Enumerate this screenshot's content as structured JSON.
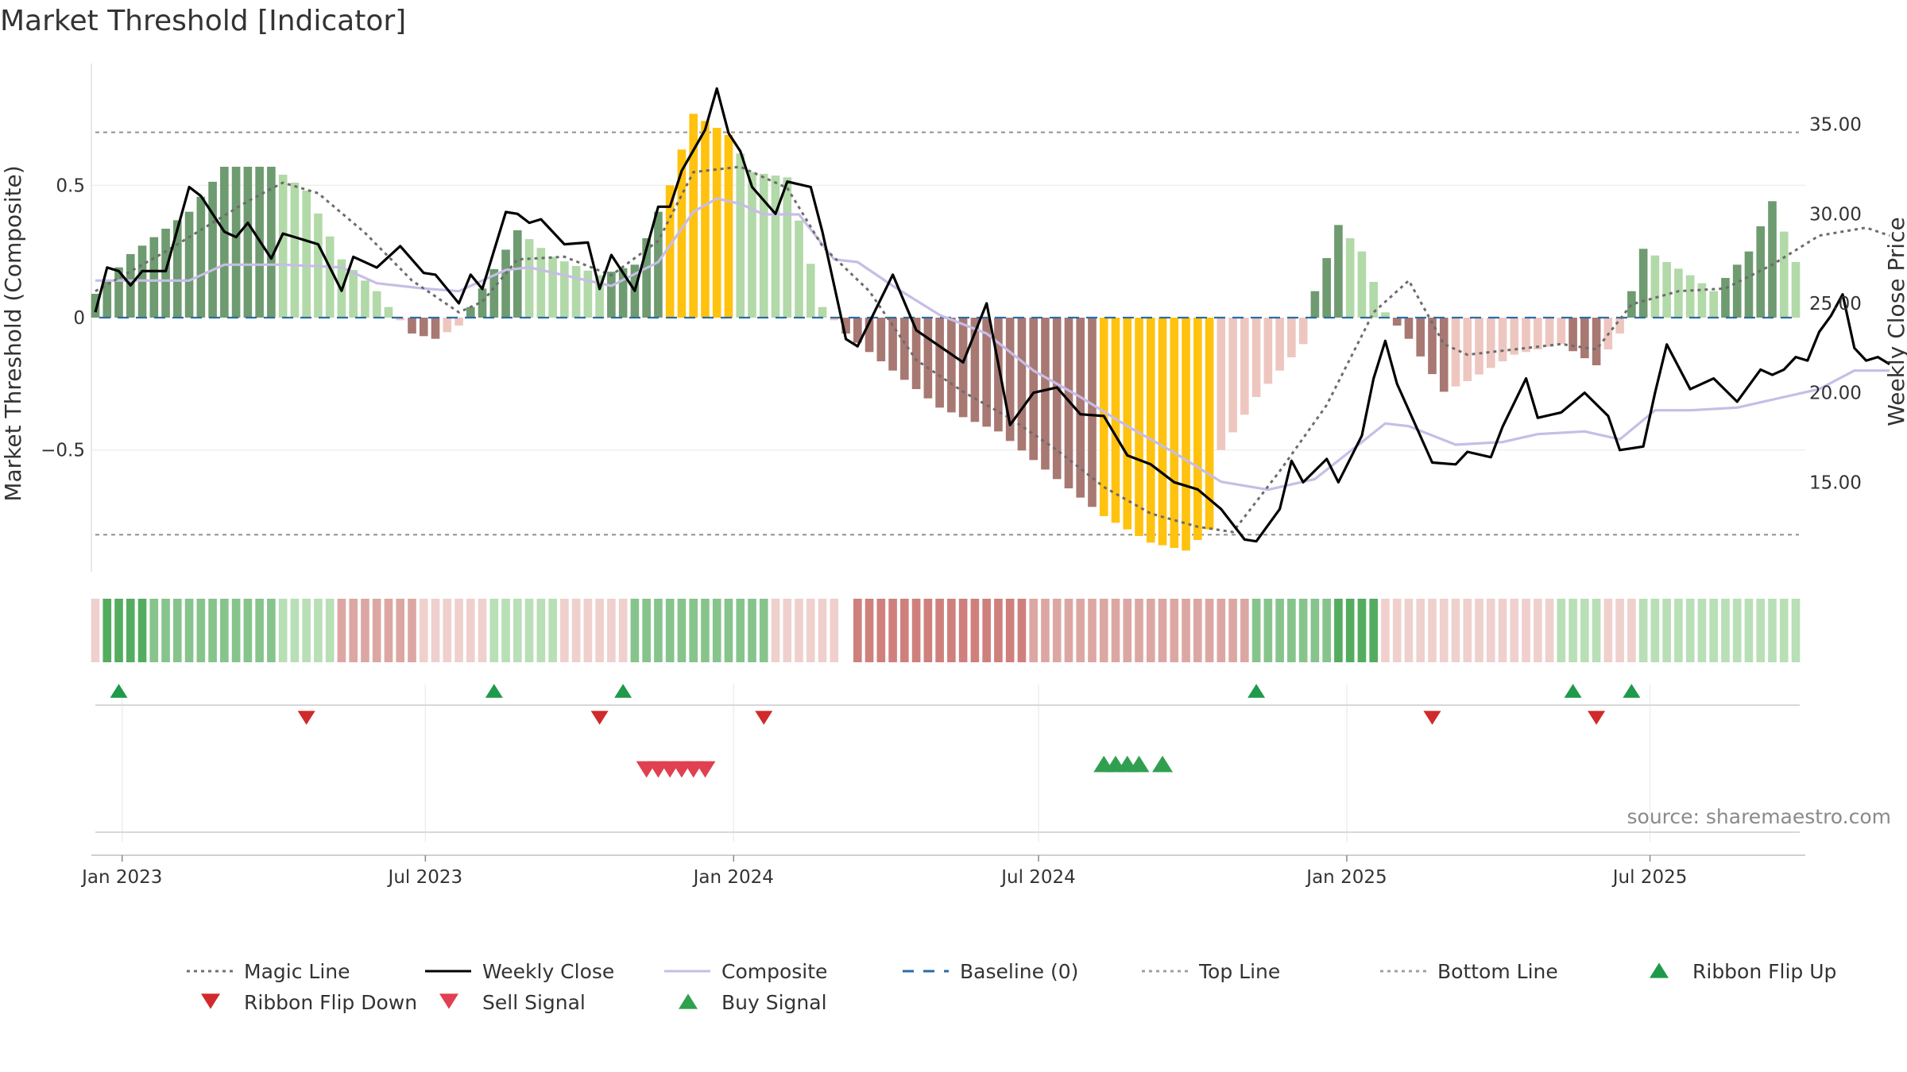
{
  "chart_data": {
    "type": "bar",
    "title": "Market Threshold [Indicator]",
    "ylabel_left": "Market Threshold (Composite)",
    "ylabel_right": "Weekly Close Price",
    "source": "source: sharemaestro.com",
    "left_ticks": [
      0.5,
      0,
      -0.5
    ],
    "left_tick_labels": [
      "0.5",
      "0",
      "−0.5"
    ],
    "right_ticks": [
      35,
      30,
      25,
      20,
      15
    ],
    "right_tick_labels": [
      "35.00",
      "30.00",
      "25.00",
      "20.00",
      "15.00"
    ],
    "ylim_left": [
      -0.96,
      0.96
    ],
    "ylim_right": [
      10.0,
      38.4
    ],
    "top_line": 0.7,
    "bottom_line": -0.82,
    "x_start": "2022-12-16",
    "x_end": "2025-09-26",
    "x_tick_labels": [
      "Jan 2023",
      "Jul 2023",
      "Jan 2024",
      "Jul 2024",
      "Jan 2025",
      "Jul 2025"
    ],
    "x_tick_dates": [
      "2023-01-01",
      "2023-07-01",
      "2024-01-01",
      "2024-07-01",
      "2025-01-01",
      "2025-07-01"
    ],
    "histogram_keypoints": [
      [
        "2022-12-16",
        0.09
      ],
      [
        "2023-01-06",
        0.24
      ],
      [
        "2023-02-10",
        0.4
      ],
      [
        "2023-03-03",
        0.57
      ],
      [
        "2023-03-31",
        0.57
      ],
      [
        "2023-04-21",
        0.48
      ],
      [
        "2023-05-12",
        0.22
      ],
      [
        "2023-06-02",
        0.1
      ],
      [
        "2023-06-09",
        0.04
      ],
      [
        "2023-06-23",
        -0.06
      ],
      [
        "2023-07-07",
        -0.08
      ],
      [
        "2023-07-21",
        -0.03
      ],
      [
        "2023-08-04",
        0.11
      ],
      [
        "2023-08-25",
        0.33
      ],
      [
        "2023-09-15",
        0.23
      ],
      [
        "2023-10-13",
        0.16
      ],
      [
        "2023-11-03",
        0.2
      ],
      [
        "2023-11-24",
        0.5
      ],
      [
        "2023-12-08",
        0.77
      ],
      [
        "2023-12-29",
        0.69
      ],
      [
        "2024-01-12",
        0.55
      ],
      [
        "2024-02-02",
        0.53
      ],
      [
        "2024-02-23",
        0.04
      ],
      [
        "2024-03-08",
        -0.06
      ],
      [
        "2024-04-05",
        -0.2
      ],
      [
        "2024-05-03",
        -0.34
      ],
      [
        "2024-06-07",
        -0.43
      ],
      [
        "2024-07-12",
        -0.61
      ],
      [
        "2024-08-09",
        -0.75
      ],
      [
        "2024-09-06",
        -0.85
      ],
      [
        "2024-09-27",
        -0.88
      ],
      [
        "2024-10-11",
        -0.8
      ],
      [
        "2024-10-18",
        -0.5
      ],
      [
        "2024-11-08",
        -0.3
      ],
      [
        "2024-12-06",
        -0.1
      ],
      [
        "2024-12-13",
        0.1
      ],
      [
        "2024-12-27",
        0.35
      ],
      [
        "2025-01-10",
        0.25
      ],
      [
        "2025-01-24",
        0.02
      ],
      [
        "2025-02-07",
        -0.08
      ],
      [
        "2025-02-28",
        -0.28
      ],
      [
        "2025-03-14",
        -0.24
      ],
      [
        "2025-04-11",
        -0.14
      ],
      [
        "2025-05-09",
        -0.1
      ],
      [
        "2025-05-30",
        -0.18
      ],
      [
        "2025-06-13",
        -0.06
      ],
      [
        "2025-06-27",
        0.26
      ],
      [
        "2025-07-25",
        0.16
      ],
      [
        "2025-08-08",
        0.1
      ],
      [
        "2025-08-29",
        0.25
      ],
      [
        "2025-09-12",
        0.44
      ],
      [
        "2025-09-26",
        0.21
      ]
    ],
    "bar_colors": {
      "pos_strong": "#6e9b70",
      "pos_weak": "#b2d9a8",
      "neg_strong": "#a87873",
      "neg_weak": "#eec6c0",
      "extreme": "#ffc20e"
    },
    "extreme_windows": [
      [
        "2023-11-24",
        "2023-12-29"
      ],
      [
        "2024-08-09",
        "2024-10-11"
      ]
    ],
    "weekly_close_keypoints": [
      [
        "2022-12-16",
        24.5
      ],
      [
        "2022-12-23",
        27.0
      ],
      [
        "2022-12-30",
        26.8
      ],
      [
        "2023-01-06",
        26.0
      ],
      [
        "2023-01-13",
        26.8
      ],
      [
        "2023-01-27",
        26.8
      ],
      [
        "2023-02-10",
        31.5
      ],
      [
        "2023-02-17",
        31.0
      ],
      [
        "2023-03-03",
        29.0
      ],
      [
        "2023-03-10",
        28.7
      ],
      [
        "2023-03-17",
        29.5
      ],
      [
        "2023-03-31",
        27.5
      ],
      [
        "2023-04-07",
        28.9
      ],
      [
        "2023-04-28",
        28.3
      ],
      [
        "2023-05-12",
        25.7
      ],
      [
        "2023-05-19",
        27.6
      ],
      [
        "2023-06-02",
        27.0
      ],
      [
        "2023-06-16",
        28.2
      ],
      [
        "2023-06-30",
        26.7
      ],
      [
        "2023-07-07",
        26.6
      ],
      [
        "2023-07-21",
        25.0
      ],
      [
        "2023-07-28",
        26.6
      ],
      [
        "2023-08-04",
        25.8
      ],
      [
        "2023-08-18",
        30.1
      ],
      [
        "2023-08-25",
        30.0
      ],
      [
        "2023-09-01",
        29.5
      ],
      [
        "2023-09-08",
        29.7
      ],
      [
        "2023-09-22",
        28.3
      ],
      [
        "2023-10-06",
        28.4
      ],
      [
        "2023-10-13",
        25.8
      ],
      [
        "2023-10-20",
        27.7
      ],
      [
        "2023-11-03",
        25.7
      ],
      [
        "2023-11-17",
        30.4
      ],
      [
        "2023-11-24",
        30.4
      ],
      [
        "2023-12-01",
        32.4
      ],
      [
        "2023-12-15",
        34.7
      ],
      [
        "2023-12-22",
        37.0
      ],
      [
        "2023-12-29",
        34.5
      ],
      [
        "2024-01-05",
        33.5
      ],
      [
        "2024-01-12",
        31.5
      ],
      [
        "2024-01-26",
        30.0
      ],
      [
        "2024-02-02",
        31.8
      ],
      [
        "2024-02-16",
        31.5
      ],
      [
        "2024-02-23",
        29.0
      ],
      [
        "2024-03-08",
        23.0
      ],
      [
        "2024-03-15",
        22.6
      ],
      [
        "2024-04-05",
        26.6
      ],
      [
        "2024-04-19",
        23.5
      ],
      [
        "2024-05-03",
        22.6
      ],
      [
        "2024-05-17",
        21.7
      ],
      [
        "2024-05-31",
        25.0
      ],
      [
        "2024-06-14",
        18.2
      ],
      [
        "2024-06-28",
        20.0
      ],
      [
        "2024-07-12",
        20.3
      ],
      [
        "2024-07-26",
        18.8
      ],
      [
        "2024-08-09",
        18.7
      ],
      [
        "2024-08-23",
        16.5
      ],
      [
        "2024-09-06",
        16.0
      ],
      [
        "2024-09-20",
        15.0
      ],
      [
        "2024-10-04",
        14.6
      ],
      [
        "2024-10-18",
        13.5
      ],
      [
        "2024-11-01",
        11.8
      ],
      [
        "2024-11-08",
        11.7
      ],
      [
        "2024-11-22",
        13.5
      ],
      [
        "2024-11-29",
        16.2
      ],
      [
        "2024-12-06",
        15.0
      ],
      [
        "2024-12-20",
        16.3
      ],
      [
        "2024-12-27",
        15.0
      ],
      [
        "2025-01-10",
        17.6
      ],
      [
        "2025-01-17",
        20.8
      ],
      [
        "2025-01-24",
        22.9
      ],
      [
        "2025-01-31",
        20.5
      ],
      [
        "2025-02-21",
        16.1
      ],
      [
        "2025-03-07",
        16.0
      ],
      [
        "2025-03-14",
        16.7
      ],
      [
        "2025-03-28",
        16.4
      ],
      [
        "2025-04-04",
        18.1
      ],
      [
        "2025-04-18",
        20.8
      ],
      [
        "2025-04-25",
        18.6
      ],
      [
        "2025-05-09",
        18.9
      ],
      [
        "2025-05-23",
        20.0
      ],
      [
        "2025-06-06",
        18.7
      ],
      [
        "2025-06-13",
        16.8
      ],
      [
        "2025-06-27",
        17.0
      ],
      [
        "2025-07-04",
        20.0
      ],
      [
        "2025-07-11",
        22.7
      ],
      [
        "2025-07-25",
        20.2
      ],
      [
        "2025-08-08",
        20.8
      ],
      [
        "2025-08-22",
        19.5
      ],
      [
        "2025-09-05",
        21.3
      ],
      [
        "2025-09-12",
        21.0
      ],
      [
        "2025-09-19",
        21.3
      ],
      [
        "2025-09-26",
        22.0
      ],
      [
        "2025-10-03",
        21.8
      ],
      [
        "2025-10-10",
        23.4
      ],
      [
        "2025-10-17",
        24.3
      ],
      [
        "2025-10-24",
        25.5
      ],
      [
        "2025-10-31",
        22.5
      ],
      [
        "2025-11-07",
        21.8
      ],
      [
        "2025-11-14",
        22.0
      ],
      [
        "2025-11-21",
        21.6
      ]
    ],
    "magic_line_keypoints": [
      [
        "2022-12-16",
        0.1
      ],
      [
        "2023-01-27",
        0.25
      ],
      [
        "2023-03-17",
        0.44
      ],
      [
        "2023-04-07",
        0.51
      ],
      [
        "2023-04-28",
        0.47
      ],
      [
        "2023-05-26",
        0.32
      ],
      [
        "2023-06-23",
        0.14
      ],
      [
        "2023-07-21",
        0.02
      ],
      [
        "2023-08-04",
        0.06
      ],
      [
        "2023-08-25",
        0.22
      ],
      [
        "2023-09-22",
        0.23
      ],
      [
        "2023-10-20",
        0.16
      ],
      [
        "2023-11-17",
        0.29
      ],
      [
        "2023-12-08",
        0.55
      ],
      [
        "2024-01-05",
        0.57
      ],
      [
        "2024-02-02",
        0.49
      ],
      [
        "2024-02-23",
        0.27
      ],
      [
        "2024-03-22",
        0.1
      ],
      [
        "2024-04-19",
        -0.16
      ],
      [
        "2024-05-17",
        -0.28
      ],
      [
        "2024-06-14",
        -0.38
      ],
      [
        "2024-07-12",
        -0.5
      ],
      [
        "2024-08-09",
        -0.64
      ],
      [
        "2024-09-06",
        -0.74
      ],
      [
        "2024-10-04",
        -0.79
      ],
      [
        "2024-10-25",
        -0.81
      ],
      [
        "2024-11-22",
        -0.58
      ],
      [
        "2024-12-20",
        -0.33
      ],
      [
        "2025-01-17",
        0.02
      ],
      [
        "2025-02-07",
        0.14
      ],
      [
        "2025-02-28",
        -0.1
      ],
      [
        "2025-03-14",
        -0.14
      ],
      [
        "2025-04-11",
        -0.12
      ],
      [
        "2025-05-09",
        -0.1
      ],
      [
        "2025-05-30",
        -0.12
      ],
      [
        "2025-06-20",
        0.05
      ],
      [
        "2025-07-18",
        0.1
      ],
      [
        "2025-08-15",
        0.11
      ],
      [
        "2025-09-12",
        0.2
      ],
      [
        "2025-10-10",
        0.31
      ],
      [
        "2025-11-07",
        0.34
      ],
      [
        "2025-11-21",
        0.31
      ]
    ],
    "composite_keypoints": [
      [
        "2022-12-16",
        0.14
      ],
      [
        "2023-02-10",
        0.14
      ],
      [
        "2023-03-03",
        0.2
      ],
      [
        "2023-04-07",
        0.2
      ],
      [
        "2023-05-12",
        0.19
      ],
      [
        "2023-06-02",
        0.13
      ],
      [
        "2023-06-30",
        0.11
      ],
      [
        "2023-07-21",
        0.1
      ],
      [
        "2023-08-18",
        0.18
      ],
      [
        "2023-09-01",
        0.19
      ],
      [
        "2023-09-22",
        0.16
      ],
      [
        "2023-10-20",
        0.12
      ],
      [
        "2023-11-17",
        0.21
      ],
      [
        "2023-12-08",
        0.4
      ],
      [
        "2023-12-22",
        0.45
      ],
      [
        "2024-01-05",
        0.43
      ],
      [
        "2024-01-19",
        0.39
      ],
      [
        "2024-02-09",
        0.39
      ],
      [
        "2024-03-01",
        0.22
      ],
      [
        "2024-03-15",
        0.21
      ],
      [
        "2024-04-05",
        0.12
      ],
      [
        "2024-05-03",
        0.01
      ],
      [
        "2024-05-31",
        -0.06
      ],
      [
        "2024-06-28",
        -0.2
      ],
      [
        "2024-07-26",
        -0.3
      ],
      [
        "2024-08-23",
        -0.41
      ],
      [
        "2024-09-20",
        -0.51
      ],
      [
        "2024-10-18",
        -0.62
      ],
      [
        "2024-11-15",
        -0.65
      ],
      [
        "2024-12-13",
        -0.61
      ],
      [
        "2025-01-10",
        -0.47
      ],
      [
        "2025-01-24",
        -0.4
      ],
      [
        "2025-02-07",
        -0.41
      ],
      [
        "2025-03-07",
        -0.48
      ],
      [
        "2025-04-04",
        -0.47
      ],
      [
        "2025-04-25",
        -0.44
      ],
      [
        "2025-05-23",
        -0.43
      ],
      [
        "2025-06-13",
        -0.46
      ],
      [
        "2025-07-04",
        -0.35
      ],
      [
        "2025-07-25",
        -0.35
      ],
      [
        "2025-08-22",
        -0.34
      ],
      [
        "2025-09-19",
        -0.3
      ],
      [
        "2025-10-10",
        -0.27
      ],
      [
        "2025-10-31",
        -0.2
      ],
      [
        "2025-11-21",
        -0.2
      ]
    ],
    "ribbon_segments": [
      [
        "2022-12-16",
        "2022-12-23",
        "lightred"
      ],
      [
        "2022-12-23",
        "2023-01-20",
        "darkgreen"
      ],
      [
        "2023-01-20",
        "2023-04-07",
        "midgreen"
      ],
      [
        "2023-04-07",
        "2023-05-12",
        "lightgreen"
      ],
      [
        "2023-05-12",
        "2023-06-30",
        "midred"
      ],
      [
        "2023-06-30",
        "2023-08-11",
        "lightred"
      ],
      [
        "2023-08-11",
        "2023-09-22",
        "lightgreen"
      ],
      [
        "2023-09-22",
        "2023-11-03",
        "lightred"
      ],
      [
        "2023-11-03",
        "2024-01-26",
        "midgreen"
      ],
      [
        "2024-01-26",
        "2024-03-08",
        "lightred"
      ],
      [
        "2024-03-15",
        "2024-06-28",
        "darkred"
      ],
      [
        "2024-06-28",
        "2024-11-08",
        "midred"
      ],
      [
        "2024-11-08",
        "2024-12-27",
        "midgreen"
      ],
      [
        "2024-12-27",
        "2025-01-24",
        "darkgreen"
      ],
      [
        "2025-01-24",
        "2025-05-09",
        "lightred"
      ],
      [
        "2025-05-09",
        "2025-06-06",
        "lightgreen"
      ],
      [
        "2025-06-06",
        "2025-06-27",
        "lightred"
      ],
      [
        "2025-06-27",
        "2025-11-28",
        "lightgreen"
      ]
    ],
    "ribbon_colors": {
      "darkgreen": "#54ac60",
      "midgreen": "#86c48c",
      "lightgreen": "#b8dfb6",
      "darkred": "#cf807d",
      "midred": "#dca7a3",
      "lightred": "#efd0cd"
    },
    "ribbon_flip_up": [
      "2022-12-30",
      "2023-08-11",
      "2023-10-27",
      "2024-11-08",
      "2025-05-16",
      "2025-06-20"
    ],
    "ribbon_flip_down": [
      "2023-04-21",
      "2023-10-13",
      "2024-01-19",
      "2025-02-21",
      "2025-05-30"
    ],
    "sell_signals": [
      "2023-11-10",
      "2023-11-17",
      "2023-11-24",
      "2023-12-01",
      "2023-12-08",
      "2023-12-15"
    ],
    "buy_signals": [
      "2024-08-09",
      "2024-08-16",
      "2024-08-23",
      "2024-08-30",
      "2024-09-13"
    ],
    "legend": [
      {
        "label": "Magic Line",
        "style": "dotted",
        "color": "#707070"
      },
      {
        "label": "Weekly Close",
        "style": "solid",
        "color": "#000000"
      },
      {
        "label": "Composite",
        "style": "solid",
        "color": "#c7bde6"
      },
      {
        "label": "Baseline (0)",
        "style": "dashed",
        "color": "#2b6ca3"
      },
      {
        "label": "Top Line",
        "style": "dotted",
        "color": "#a0a0a0"
      },
      {
        "label": "Bottom Line",
        "style": "dotted",
        "color": "#a0a0a0"
      },
      {
        "label": "Ribbon Flip Up",
        "style": "tri-up",
        "color": "#1e9a4a"
      },
      {
        "label": "Ribbon Flip Down",
        "style": "tri-down",
        "color": "#d02a2a"
      },
      {
        "label": "Sell Signal",
        "style": "tri-down",
        "color": "#e04050"
      },
      {
        "label": "Buy Signal",
        "style": "tri-up",
        "color": "#30a050"
      }
    ]
  }
}
